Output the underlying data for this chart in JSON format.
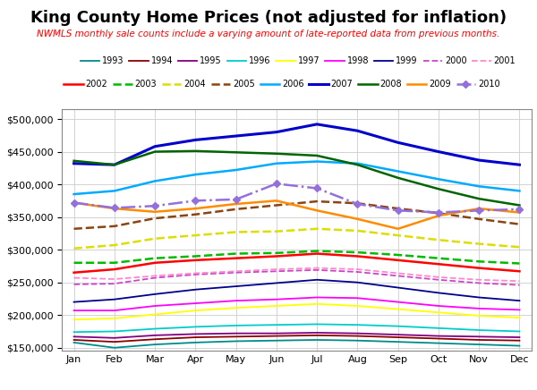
{
  "title": "King County Home Prices (not adjusted for inflation)",
  "subtitle": "NWMLS monthly sale counts include a varying amount of late-reported data from previous months.",
  "months": [
    "Jan",
    "Feb",
    "Mar",
    "Apr",
    "May",
    "Jun",
    "Jul",
    "Aug",
    "Sep",
    "Oct",
    "Nov",
    "Dec"
  ],
  "ylim": [
    145000,
    515000
  ],
  "yticks": [
    150000,
    200000,
    250000,
    300000,
    350000,
    400000,
    450000,
    500000
  ],
  "series": {
    "1993": {
      "color": "#008B8B",
      "linestyle": "-",
      "linewidth": 1.3,
      "marker": "",
      "markersize": 0,
      "data": [
        158000,
        150000,
        155000,
        158000,
        160000,
        161000,
        162000,
        161000,
        159000,
        157000,
        155000,
        153000
      ]
    },
    "1994": {
      "color": "#8B0000",
      "linestyle": "-",
      "linewidth": 1.3,
      "marker": "",
      "markersize": 0,
      "data": [
        162000,
        159000,
        163000,
        166000,
        167000,
        168000,
        169000,
        168000,
        166000,
        164000,
        162000,
        161000
      ]
    },
    "1995": {
      "color": "#800080",
      "linestyle": "-",
      "linewidth": 1.3,
      "marker": "",
      "markersize": 0,
      "data": [
        167000,
        165000,
        169000,
        171000,
        172000,
        172000,
        173000,
        172000,
        170000,
        168000,
        167000,
        166000
      ]
    },
    "1996": {
      "color": "#00CCCC",
      "linestyle": "-",
      "linewidth": 1.3,
      "marker": "",
      "markersize": 0,
      "data": [
        174000,
        175000,
        179000,
        182000,
        184000,
        185000,
        186000,
        185000,
        183000,
        180000,
        177000,
        175000
      ]
    },
    "1997": {
      "color": "#FFFF00",
      "linestyle": "-",
      "linewidth": 1.3,
      "marker": "",
      "markersize": 0,
      "data": [
        193000,
        195000,
        201000,
        207000,
        211000,
        214000,
        217000,
        214000,
        209000,
        204000,
        199000,
        196000
      ]
    },
    "1998": {
      "color": "#FF00FF",
      "linestyle": "-",
      "linewidth": 1.3,
      "marker": "",
      "markersize": 0,
      "data": [
        207000,
        207000,
        214000,
        218000,
        222000,
        224000,
        227000,
        226000,
        220000,
        214000,
        210000,
        208000
      ]
    },
    "1999": {
      "color": "#00008B",
      "linestyle": "-",
      "linewidth": 1.3,
      "marker": "",
      "markersize": 0,
      "data": [
        220000,
        224000,
        232000,
        239000,
        244000,
        249000,
        254000,
        250000,
        242000,
        234000,
        227000,
        222000
      ]
    },
    "2000": {
      "color": "#CC44CC",
      "linestyle": "--",
      "linewidth": 1.3,
      "marker": "",
      "markersize": 0,
      "data": [
        247000,
        248000,
        257000,
        262000,
        265000,
        267000,
        269000,
        266000,
        260000,
        254000,
        249000,
        246000
      ]
    },
    "2001": {
      "color": "#FF88CC",
      "linestyle": "--",
      "linewidth": 1.3,
      "marker": "",
      "markersize": 0,
      "data": [
        257000,
        255000,
        260000,
        264000,
        267000,
        270000,
        272000,
        270000,
        264000,
        258000,
        254000,
        252000
      ]
    },
    "2002": {
      "color": "#FF0000",
      "linestyle": "-",
      "linewidth": 1.8,
      "marker": "",
      "markersize": 0,
      "data": [
        265000,
        270000,
        280000,
        284000,
        287000,
        290000,
        294000,
        290000,
        284000,
        278000,
        272000,
        267000
      ]
    },
    "2003": {
      "color": "#00BB00",
      "linestyle": "--",
      "linewidth": 1.8,
      "marker": "",
      "markersize": 0,
      "data": [
        280000,
        280000,
        287000,
        290000,
        294000,
        295000,
        298000,
        296000,
        292000,
        287000,
        282000,
        279000
      ]
    },
    "2004": {
      "color": "#DDDD00",
      "linestyle": "--",
      "linewidth": 1.8,
      "marker": "",
      "markersize": 0,
      "data": [
        302000,
        307000,
        317000,
        322000,
        327000,
        328000,
        332000,
        329000,
        322000,
        315000,
        309000,
        304000
      ]
    },
    "2005": {
      "color": "#8B4513",
      "linestyle": "--",
      "linewidth": 1.8,
      "marker": "",
      "markersize": 0,
      "data": [
        332000,
        336000,
        348000,
        354000,
        362000,
        368000,
        374000,
        371000,
        363000,
        356000,
        347000,
        339000
      ]
    },
    "2006": {
      "color": "#00AAFF",
      "linestyle": "-",
      "linewidth": 1.8,
      "marker": "",
      "markersize": 0,
      "data": [
        385000,
        390000,
        405000,
        415000,
        422000,
        432000,
        435000,
        432000,
        420000,
        408000,
        397000,
        390000
      ]
    },
    "2007": {
      "color": "#0000CC",
      "linestyle": "-",
      "linewidth": 2.2,
      "marker": "",
      "markersize": 0,
      "data": [
        432000,
        430000,
        458000,
        468000,
        474000,
        480000,
        492000,
        482000,
        464000,
        450000,
        437000,
        430000
      ]
    },
    "2008": {
      "color": "#006400",
      "linestyle": "-",
      "linewidth": 1.8,
      "marker": "",
      "markersize": 0,
      "data": [
        436000,
        430000,
        450000,
        451000,
        449000,
        447000,
        444000,
        430000,
        410000,
        393000,
        378000,
        368000
      ]
    },
    "2009": {
      "color": "#FF8C00",
      "linestyle": "-",
      "linewidth": 1.8,
      "marker": "",
      "markersize": 0,
      "data": [
        372000,
        363000,
        358000,
        363000,
        370000,
        375000,
        360000,
        347000,
        332000,
        352000,
        363000,
        357000
      ]
    },
    "2010": {
      "color": "#9370DB",
      "linestyle": "-.",
      "linewidth": 1.8,
      "marker": "D",
      "markersize": 4,
      "data": [
        372000,
        364000,
        367000,
        375000,
        377000,
        401000,
        394000,
        370000,
        360000,
        357000,
        360000,
        362000
      ]
    }
  },
  "legend_row1": [
    "1993",
    "1994",
    "1995",
    "1996",
    "1997",
    "1998",
    "1999",
    "2000",
    "2001"
  ],
  "legend_row2": [
    "2002",
    "2003",
    "2004",
    "2005",
    "2006",
    "2007",
    "2008",
    "2009",
    "2010"
  ],
  "background_color": "#FFFFFF",
  "grid_color": "#CCCCCC",
  "title_fontsize": 13,
  "subtitle_fontsize": 7.5,
  "legend_fontsize": 7,
  "tick_fontsize": 8
}
